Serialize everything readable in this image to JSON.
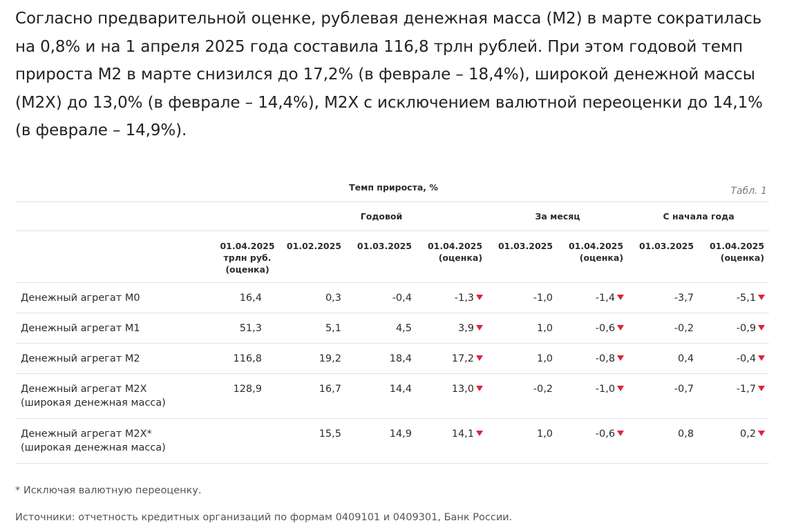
{
  "intro_text": "Согласно предварительной оценке, рублевая денежная масса (М2) в марте сократилась на 0,8% и на 1 апреля 2025 года составила 116,8 трлн рублей. При этом годовой темп прироста М2 в марте снизился до 17,2% (в феврале – 18,4%), широкой денежной массы (М2Х) до 13,0% (в феврале – 14,4%), М2Х с исключением валютной переоценки до 14,1% (в феврале – 14,9%).",
  "table": {
    "label": "Табл. 1",
    "title": "Темп прироста, %",
    "groups": [
      "Годовой",
      "За месяц",
      "С начала года"
    ],
    "date_headers": [
      [
        "01.04.2025",
        "трлн руб.",
        "(оценка)"
      ],
      [
        "01.02.2025"
      ],
      [
        "01.03.2025"
      ],
      [
        "01.04.2025",
        "(оценка)"
      ],
      [
        "01.03.2025"
      ],
      [
        "01.04.2025",
        "(оценка)"
      ],
      [
        "01.03.2025"
      ],
      [
        "01.04.2025",
        "(оценка)"
      ]
    ],
    "rows": [
      {
        "name": [
          "Денежный агрегат М0"
        ],
        "values": [
          "16,4",
          "0,3",
          "-0,4",
          "-1,3",
          "-1,0",
          "-1,4",
          "-3,7",
          "-5,1"
        ]
      },
      {
        "name": [
          "Денежный агрегат М1"
        ],
        "values": [
          "51,3",
          "5,1",
          "4,5",
          "3,9",
          "1,0",
          "-0,6",
          "-0,2",
          "-0,9"
        ]
      },
      {
        "name": [
          "Денежный агрегат М2"
        ],
        "values": [
          "116,8",
          "19,2",
          "18,4",
          "17,2",
          "1,0",
          "-0,8",
          "0,4",
          "-0,4"
        ]
      },
      {
        "name": [
          "Денежный агрегат М2Х",
          "(широкая денежная масса)"
        ],
        "values": [
          "128,9",
          "16,7",
          "14,4",
          "13,0",
          "-0,2",
          "-1,0",
          "-0,7",
          "-1,7"
        ]
      },
      {
        "name": [
          "Денежный агрегат М2Х*",
          "(широкая денежная масса)"
        ],
        "values": [
          "",
          "15,5",
          "14,9",
          "14,1",
          "1,0",
          "-0,6",
          "0,8",
          "0,2"
        ]
      }
    ],
    "trend_icon": "down-triangle-icon",
    "trend_color": "#e0233b"
  },
  "footnote": "* Исключая валютную переоценку.",
  "sources": "Источники: отчетность кредитных организаций по формам 0409101 и 0409301, Банк России."
}
